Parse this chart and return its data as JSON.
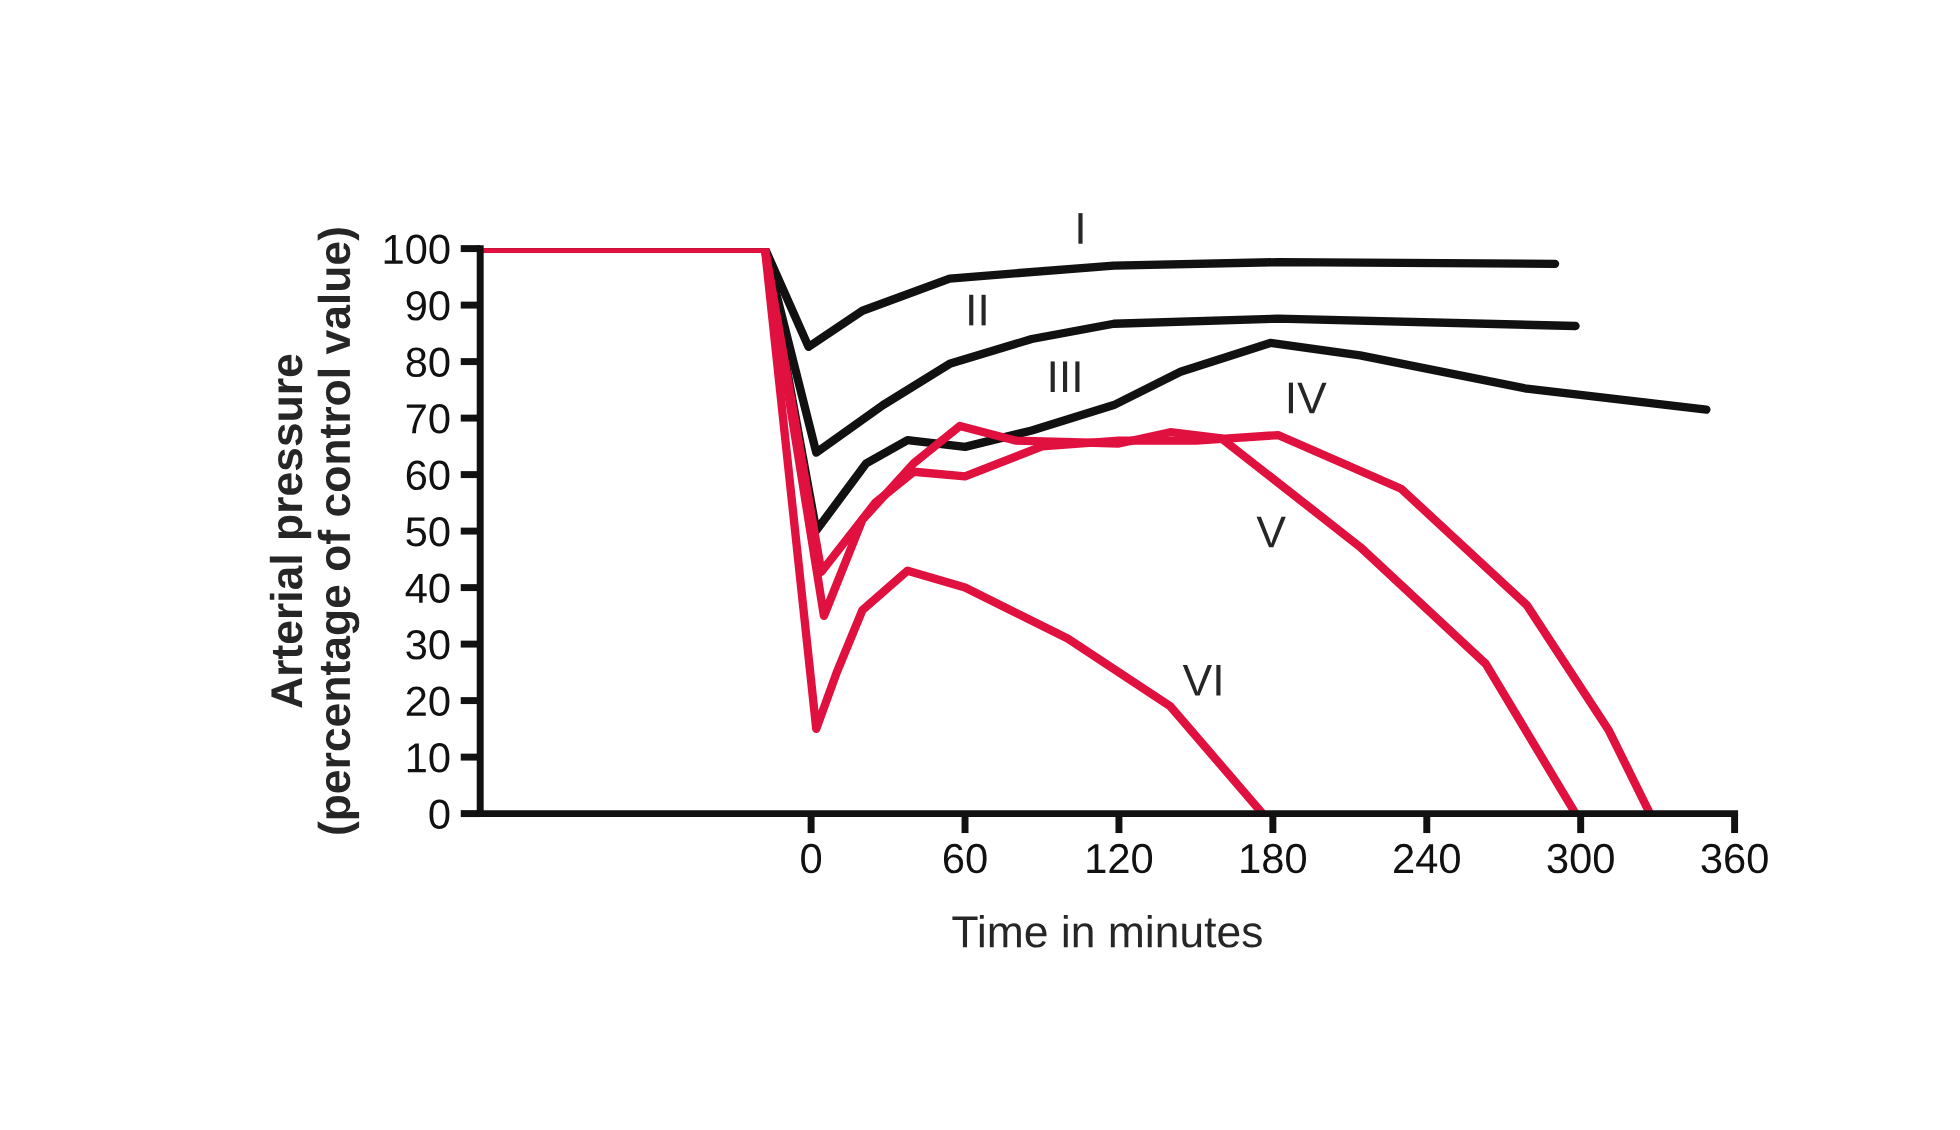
{
  "chart_data": {
    "type": "line",
    "xlabel": "Time in minutes",
    "ylabel": "Arterial pressure\n(percentage of control value)",
    "xlim": [
      -129,
      360
    ],
    "xticks": [
      0,
      60,
      120,
      180,
      240,
      300,
      360
    ],
    "ylim": [
      0,
      100
    ],
    "yticks": [
      0,
      10,
      20,
      30,
      40,
      50,
      60,
      70,
      80,
      90,
      100
    ],
    "grid": false,
    "legend": false,
    "marker": "none",
    "line_style": "solid",
    "series": [
      {
        "name": "I",
        "color": "#111111",
        "x": [
          -129,
          -18,
          -1,
          20,
          54,
          118,
          182,
          290
        ],
        "values": [
          100,
          100,
          82.6,
          89,
          94.7,
          97,
          97.6,
          97.3
        ]
      },
      {
        "name": "II",
        "color": "#111111",
        "x": [
          -129,
          -18,
          2,
          28,
          54,
          86,
          118,
          182,
          298
        ],
        "values": [
          100,
          100,
          63.9,
          72.3,
          79.6,
          84,
          86.7,
          87.6,
          86.3
        ]
      },
      {
        "name": "III",
        "color": "#111111",
        "x": [
          -129,
          -18,
          2,
          21.5,
          37.6,
          60,
          86,
          118,
          144,
          179,
          214,
          279,
          349
        ],
        "values": [
          100,
          100,
          50.1,
          62,
          66.1,
          64.9,
          67.8,
          72.3,
          78.2,
          83.3,
          81.1,
          75.2,
          71.5
        ]
      },
      {
        "name": "IV",
        "color": "#e0103f",
        "x": [
          -129,
          -18,
          4,
          25,
          40,
          60,
          90,
          120,
          150,
          182,
          230,
          279,
          311,
          327
        ],
        "values": [
          100,
          100,
          42.8,
          55,
          60.5,
          59.7,
          65,
          66,
          66,
          67,
          57.5,
          36.9,
          14.7,
          0
        ]
      },
      {
        "name": "V",
        "color": "#e0103f",
        "x": [
          -129,
          -18,
          5,
          20,
          40,
          58,
          80,
          120,
          140,
          160,
          214,
          263,
          298
        ],
        "values": [
          100,
          100,
          35,
          52,
          62,
          68.6,
          66,
          65.5,
          67.5,
          66.4,
          47.2,
          26.5,
          0
        ]
      },
      {
        "name": "VI",
        "color": "#e0103f",
        "x": [
          -129,
          -18,
          2,
          10,
          20,
          37.6,
          60,
          100,
          140,
          176
        ],
        "values": [
          100,
          100,
          15,
          25,
          36,
          43,
          40,
          31,
          19,
          0
        ]
      }
    ]
  }
}
